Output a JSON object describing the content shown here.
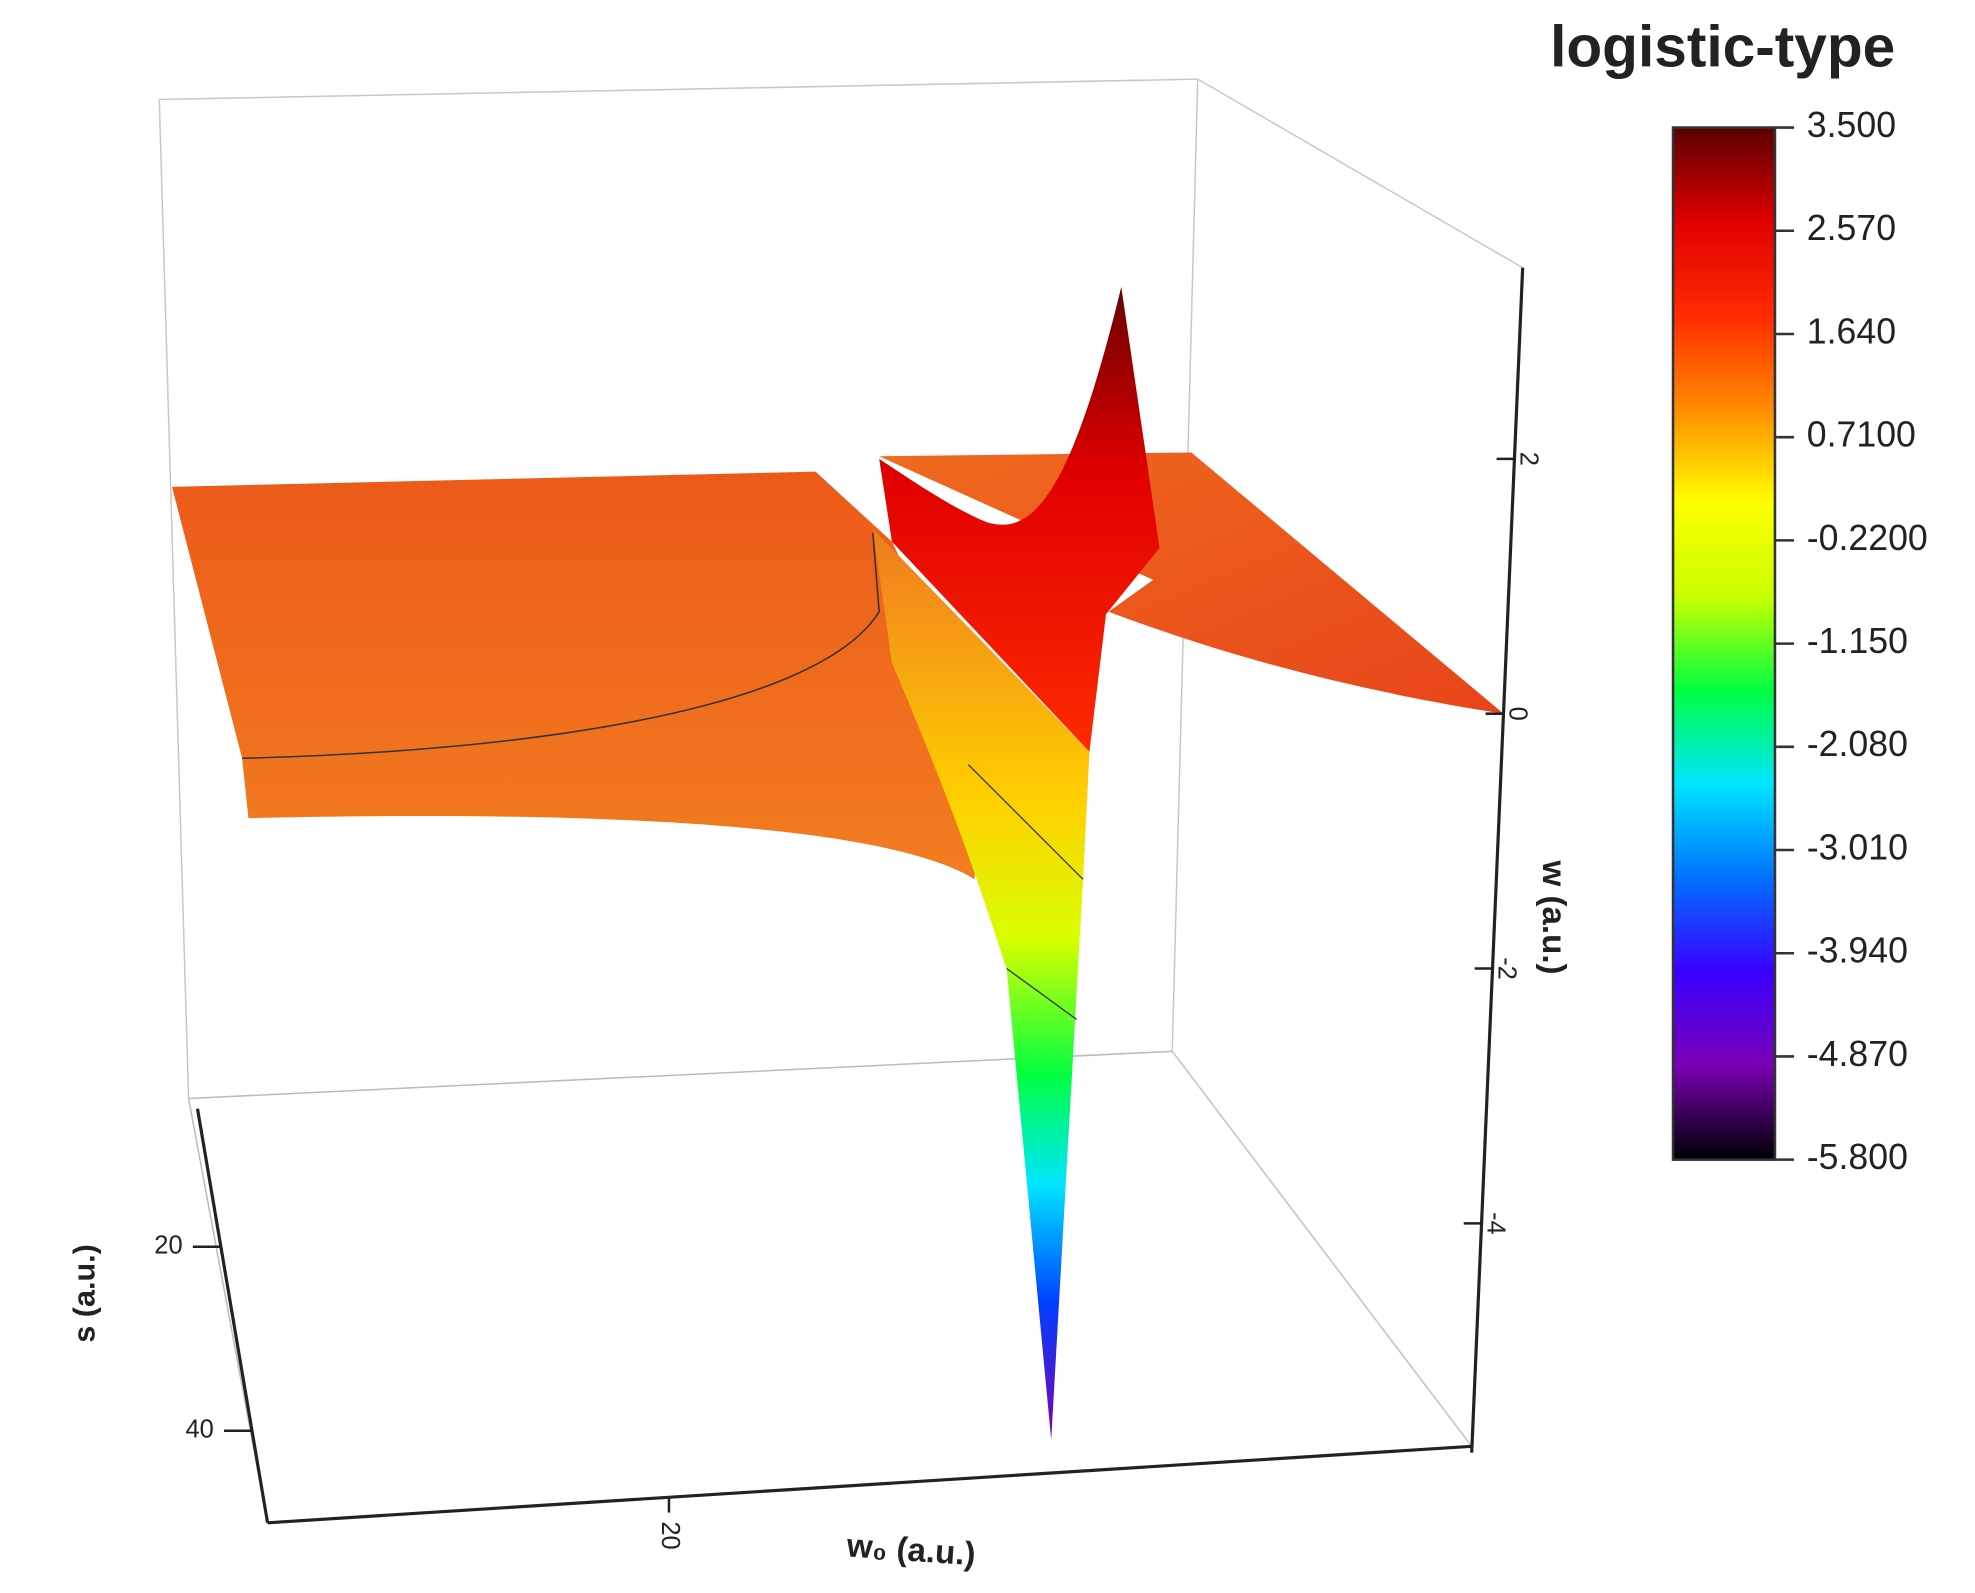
{
  "chart_data": {
    "type": "surface",
    "title": "logistic-type",
    "xlabel": "w₀ (a.u.)",
    "ylabel": "s (a.u.)",
    "zlabel": "w (a.u.)",
    "xlim": [
      0,
      60
    ],
    "xticks": [
      20
    ],
    "ylim": [
      5,
      50
    ],
    "yticks": [
      20,
      40
    ],
    "zlim": [
      -5.8,
      3.5
    ],
    "zticks": [
      2,
      0,
      -2,
      -4
    ],
    "colorbar": {
      "clim": [
        -5.8,
        3.5
      ],
      "colormap": [
        "#000000",
        "#7a00b5",
        "#3a00ff",
        "#0070ff",
        "#00e5ff",
        "#00ff40",
        "#c8ff00",
        "#ffff00",
        "#ff8c00",
        "#ff2a00",
        "#e00000",
        "#5a0000"
      ],
      "ticks": [
        {
          "value": 3.5,
          "label": "3.500"
        },
        {
          "value": 2.57,
          "label": "2.570"
        },
        {
          "value": 1.64,
          "label": "1.640"
        },
        {
          "value": 0.71,
          "label": "0.7100"
        },
        {
          "value": -0.22,
          "label": "-0.2200"
        },
        {
          "value": -1.15,
          "label": "-1.150"
        },
        {
          "value": -2.08,
          "label": "-2.080"
        },
        {
          "value": -3.01,
          "label": "-3.010"
        },
        {
          "value": -3.94,
          "label": "-3.940"
        },
        {
          "value": -4.87,
          "label": "-4.870"
        },
        {
          "value": -5.8,
          "label": "-5.800"
        }
      ]
    }
  }
}
